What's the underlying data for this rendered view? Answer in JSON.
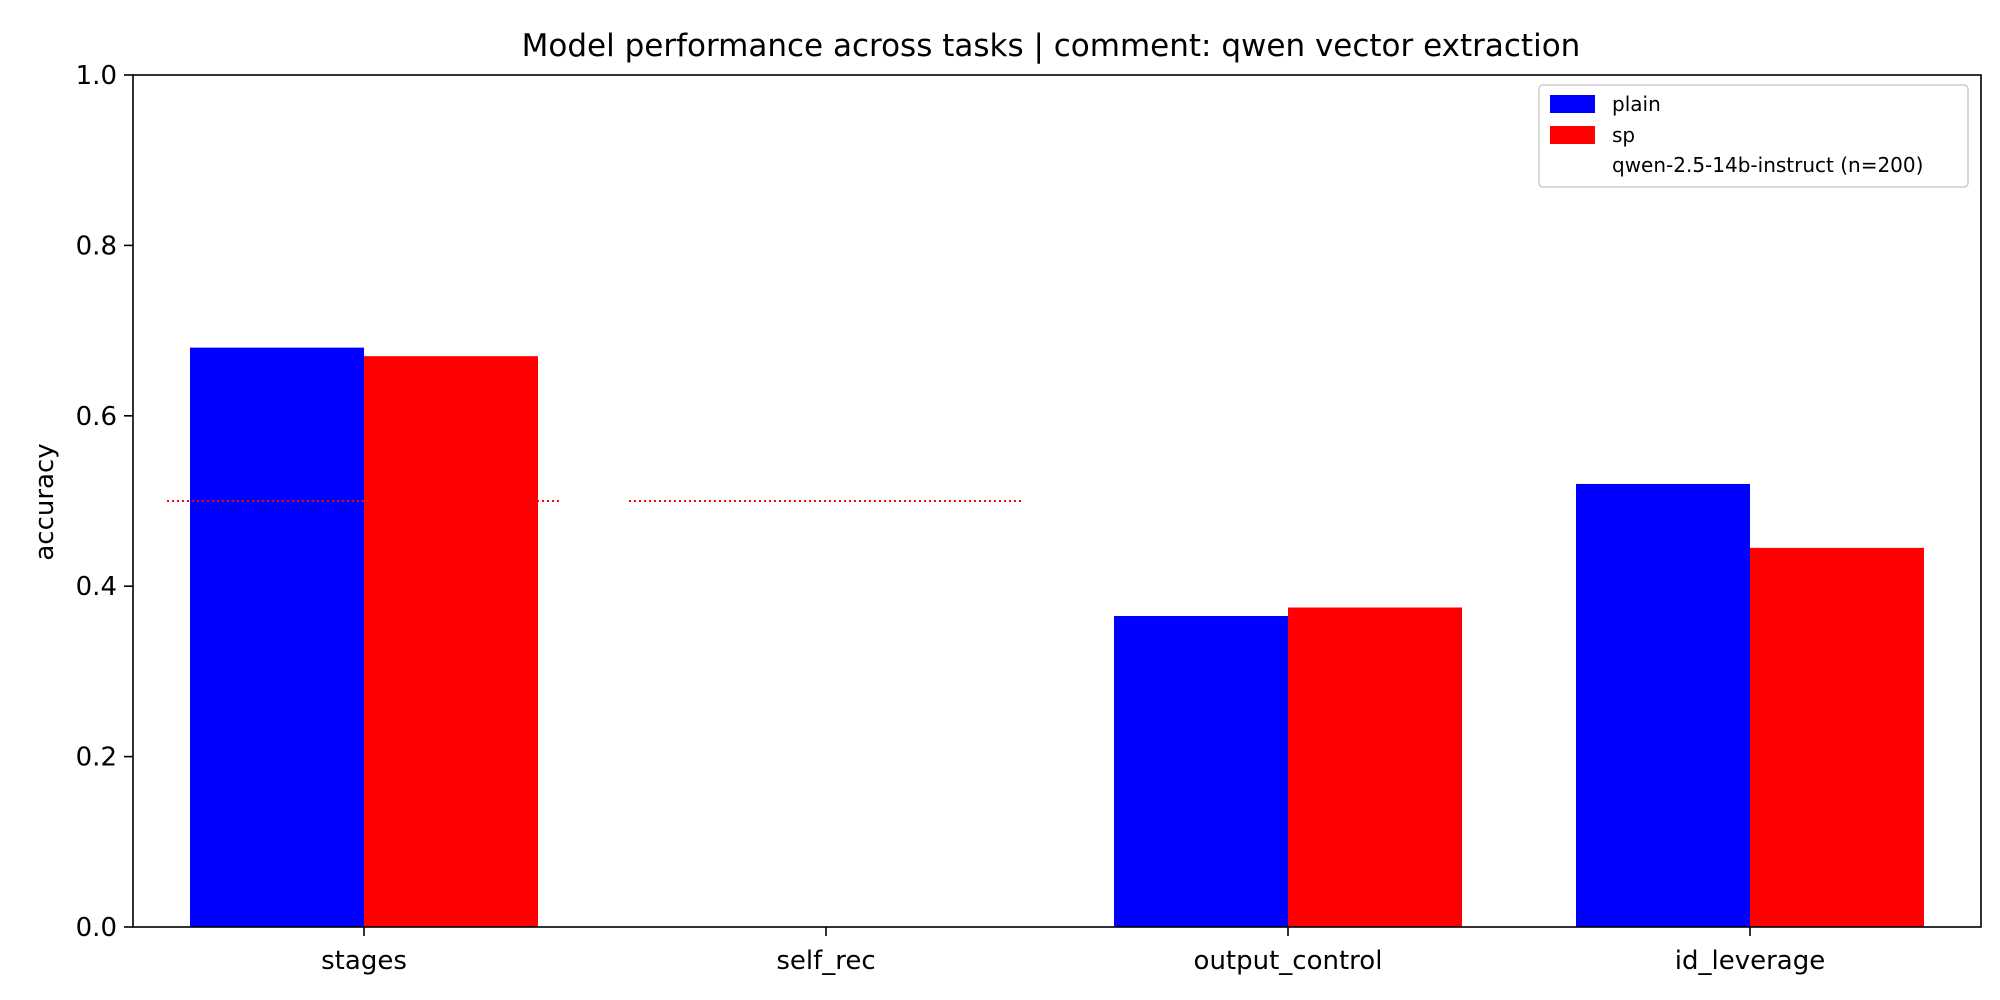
{
  "chart_data": {
    "type": "bar",
    "title": "Model performance across tasks | comment: qwen vector extraction",
    "xlabel": "",
    "ylabel": "accuracy",
    "ylim": [
      0,
      1.0
    ],
    "yticks": [
      "0.0",
      "0.2",
      "0.4",
      "0.6",
      "0.8",
      "1.0"
    ],
    "categories": [
      "stages",
      "self_rec",
      "output_control",
      "id_leverage"
    ],
    "series": [
      {
        "name": "plain",
        "color": "#0000ff",
        "values": [
          0.68,
          null,
          0.365,
          0.52
        ]
      },
      {
        "name": "sp",
        "color": "#ff0000",
        "values": [
          0.67,
          null,
          0.375,
          0.445
        ]
      }
    ],
    "reference_lines": [
      {
        "category": "stages",
        "y": 0.5,
        "color": "#ff0000",
        "style": "dotted"
      },
      {
        "category": "self_rec",
        "y": 0.5,
        "color": "#ff0000",
        "style": "dotted"
      }
    ],
    "legend": {
      "placement": "top-right",
      "entries": [
        "plain",
        "sp",
        "qwen-2.5-14b-instruct (n=200)"
      ]
    },
    "grid": false
  }
}
